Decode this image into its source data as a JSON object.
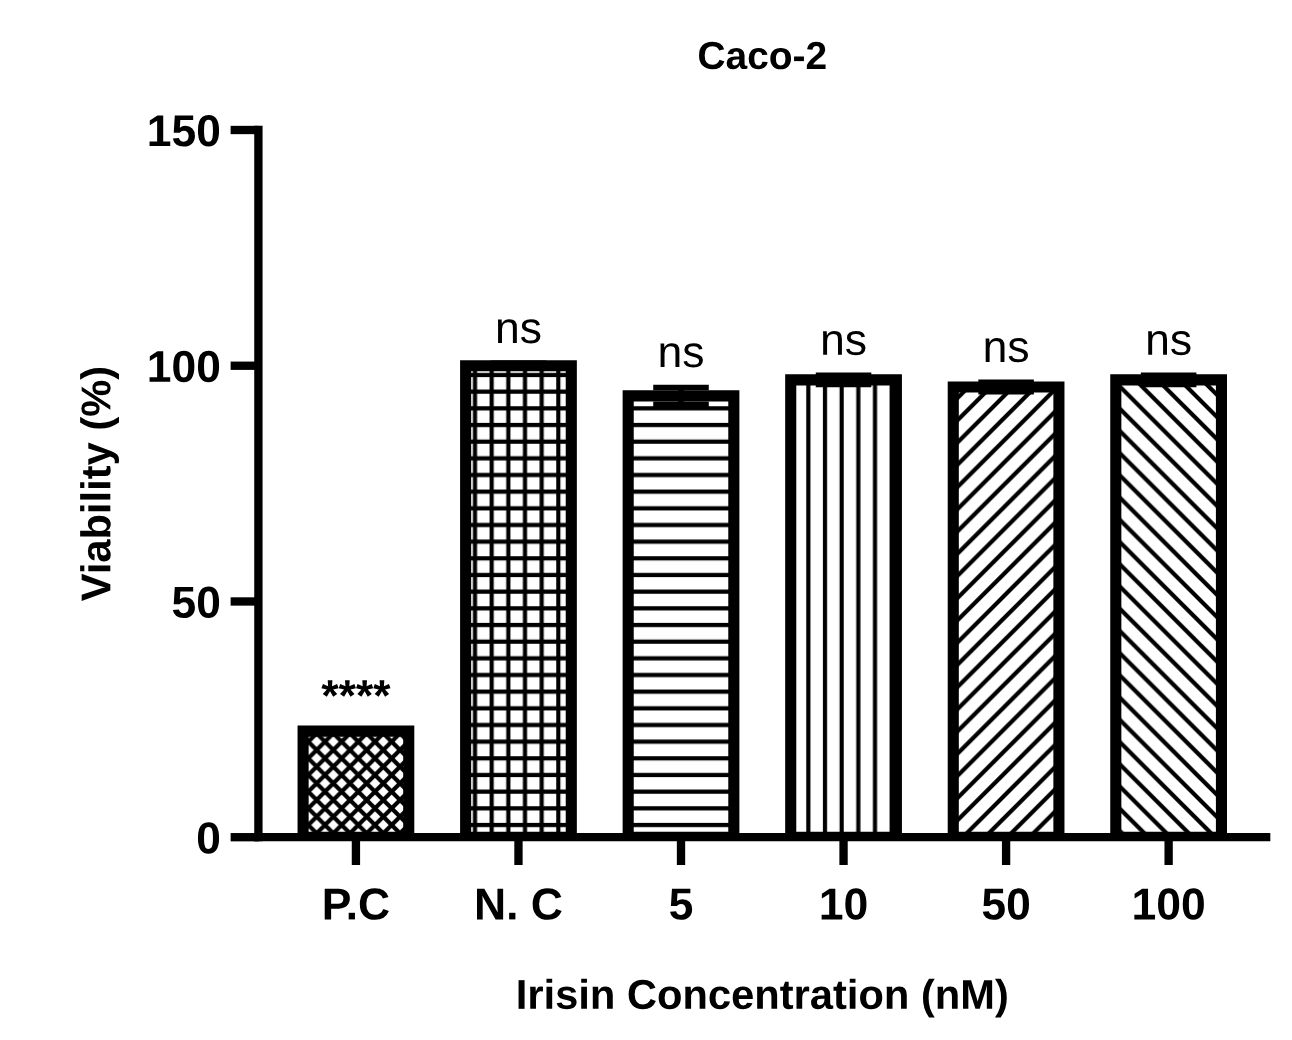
{
  "chart_data": {
    "type": "bar",
    "title": "Caco-2",
    "xlabel": "Irisin Concentration (nM)",
    "ylabel": "Viability (%)",
    "categories": [
      "P.C",
      "N. C",
      "5",
      "10",
      "50",
      "100"
    ],
    "values": [
      22.5,
      100,
      93.6,
      97,
      95.5,
      97
    ],
    "errors": [
      null,
      0.5,
      1.8,
      1,
      1,
      1
    ],
    "ylim": [
      0,
      150
    ],
    "yticks": [
      0,
      50,
      100,
      150
    ],
    "grid": false,
    "annotations": [
      {
        "text": "****",
        "x": "P.C",
        "y": 22.5
      },
      {
        "text": "ns",
        "x": "N. C",
        "y": 100
      },
      {
        "text": "ns",
        "x": "5",
        "y": 93.6
      },
      {
        "text": "ns",
        "x": "10",
        "y": 97
      },
      {
        "text": "ns",
        "x": "50",
        "y": 95.5
      },
      {
        "text": "ns",
        "x": "100",
        "y": 97
      }
    ]
  }
}
